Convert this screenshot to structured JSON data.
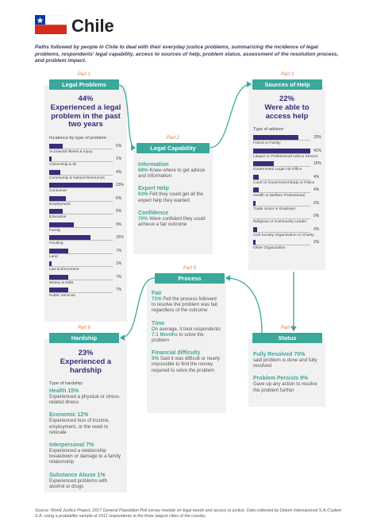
{
  "header": {
    "title": "Chile",
    "subtitle": "Paths followed by people in Chile to deal with their everyday justice problems, summarizing the incidence of legal problems, respondents' legal capability, access to sources of help, problem status, assessment of the resolution process, and problem impact."
  },
  "legal_problems": {
    "part": "Part 1",
    "title": "Legal Problems",
    "stat": "44%",
    "stat_text": "Experienced a legal problem in the past two years",
    "list_title": "Incidence by type of problem:",
    "items": [
      {
        "label": "Accidental Illness & Injury",
        "value": 5,
        "value_label": "5%"
      },
      {
        "label": "Citizenship & ID",
        "value": 1,
        "value_label": "1%"
      },
      {
        "label": "Community & Natural Resources",
        "value": 4,
        "value_label": "4%"
      },
      {
        "label": "Consumer",
        "value": 23,
        "value_label": "23%"
      },
      {
        "label": "Employment",
        "value": 6,
        "value_label": "6%"
      },
      {
        "label": "Education",
        "value": 5,
        "value_label": "5%"
      },
      {
        "label": "Family",
        "value": 9,
        "value_label": "9%"
      },
      {
        "label": "Housing",
        "value": 15,
        "value_label": "15%"
      },
      {
        "label": "Land",
        "value": 7,
        "value_label": "7%"
      },
      {
        "label": "Law Enforcement",
        "value": 1,
        "value_label": "1%"
      },
      {
        "label": "Money & Debt",
        "value": 7,
        "value_label": "7%"
      },
      {
        "label": "Public Services",
        "value": 7,
        "value_label": "7%"
      }
    ]
  },
  "legal_capability": {
    "part": "Part 2",
    "title": "Legal Capability",
    "items": [
      {
        "heading": "Information",
        "stat": "68%",
        "text": "Knew where to get advice and information"
      },
      {
        "heading": "Expert Help",
        "stat": "63%",
        "text": "Felt they could get all the expert help they wanted"
      },
      {
        "heading": "Confidence",
        "stat": "70%",
        "text": "Were confident they could achieve a fair outcome"
      }
    ]
  },
  "sources_of_help": {
    "part": "Part 3",
    "title": "Sources of Help",
    "stat": "22%",
    "stat_text": "Were able to access help",
    "list_title": "Type of advisor:",
    "items": [
      {
        "label": "Friend or Family",
        "value": 33,
        "value_label": "33%"
      },
      {
        "label": "Lawyer or Professional Advice Service",
        "value": 42,
        "value_label": "42%"
      },
      {
        "label": "Government Legal Aid Office",
        "value": 15,
        "value_label": "15%"
      },
      {
        "label": "Court or Government Body or Police",
        "value": 4,
        "value_label": "4%"
      },
      {
        "label": "Health or Welfare Professional",
        "value": 4,
        "value_label": "4%"
      },
      {
        "label": "Trade Union or Employer",
        "value": 2,
        "value_label": "2%"
      },
      {
        "label": "Religious or Community Leader",
        "value": 0,
        "value_label": "0%"
      },
      {
        "label": "Civil Society Organization or Charity",
        "value": 3,
        "value_label": "3%"
      },
      {
        "label": "Other Organization",
        "value": 2,
        "value_label": "2%"
      }
    ]
  },
  "status": {
    "part": "Part 4",
    "title": "Status",
    "items": [
      {
        "heading": "Fully Resolved 70%",
        "text": "said problem is done and fully resolved"
      },
      {
        "heading": "Problem Persists 9%",
        "text": "Gave up any action to resolve the problem further"
      }
    ]
  },
  "process": {
    "part": "Part 5",
    "title": "Process",
    "items": [
      {
        "heading": "Fair",
        "stat": "71%",
        "text": "Felt the process followed to resolve the problem was fair, regardless of the outcome"
      },
      {
        "heading": "Time",
        "pre": "On average, it took respondents",
        "stat": "7.1 Months",
        "text": "to solve the problem"
      },
      {
        "heading": "Financial difficulty",
        "stat": "5%",
        "text": "Said it was difficult or nearly impossible to find the money required to solve the problem"
      }
    ]
  },
  "hardship": {
    "part": "Part 6",
    "title": "Hardship",
    "stat": "23%",
    "stat_text": "Experienced a hardship",
    "list_title": "Type of hardship:",
    "items": [
      {
        "heading": "Health 15%",
        "text": "Experienced a physical or stress-related illness"
      },
      {
        "heading": "Economic 12%",
        "text": "Experienced loss of income, employment, or the need to relocate"
      },
      {
        "heading": "Interpersonal 7%",
        "text": "Experienced a relationship breakdown or damage to a family relationship"
      },
      {
        "heading": "Substance Abuse 1%",
        "text": "Experienced problems with alcohol or drugs"
      }
    ]
  },
  "source": "Source: World Justice Project, 2017 General Population Poll survey module on legal needs and access to justice. Data collected by Datum Internacional S.A./Cadem S.A. using a probability sample of 1011 respondents in the three largest cities of the country."
}
